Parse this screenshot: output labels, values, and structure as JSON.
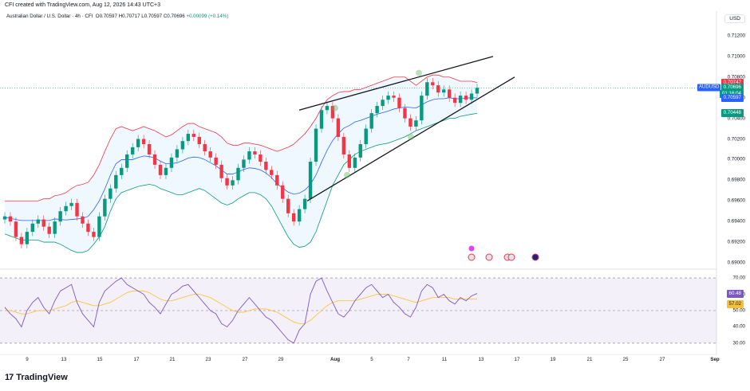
{
  "header": {
    "created_by": "CFI created with TradingView.com, Aug 12, 2026 14:43 UTC+3"
  },
  "legend": {
    "symbol": "Australian Dollar / U.S. Dollar · 4h · CFI",
    "o": "O0.70597",
    "h": "H0.70717",
    "l": "L0.70597",
    "c": "C0.70696",
    "chg": "+0.00099 (+0.14%)"
  },
  "currency": "USD",
  "price_tags": {
    "upper_band": "0.70747",
    "symbol_label": "AUDUSD",
    "last": "0.70696",
    "countdown": "01:16:04",
    "mid_band": "0.70597",
    "lower_band": "0.70448"
  },
  "rsi_tags": {
    "rsi": "60.48",
    "rsi_ma": "57.02"
  },
  "chart_data": {
    "type": "line",
    "instrument": "AUDUSD 4h",
    "y_ticks": [
      "0.71200",
      "0.71000",
      "0.70800",
      "0.70600",
      "0.70400",
      "0.70200",
      "0.70000",
      "0.69800",
      "0.69600",
      "0.69400",
      "0.69200",
      "0.69000"
    ],
    "ylim": [
      0.69,
      0.713
    ],
    "rsi_ticks": [
      "70.00",
      "60.00",
      "50.00",
      "40.00",
      "30.00"
    ],
    "rsi_ylim": [
      28,
      72
    ],
    "x_ticks": [
      "9",
      "13",
      "15",
      "17",
      "21",
      "23",
      "27",
      "29",
      "Aug",
      "5",
      "7",
      "11",
      "13",
      "17",
      "19",
      "21",
      "25",
      "27",
      "Sep"
    ],
    "close": [
      0.6945,
      0.694,
      0.6925,
      0.6918,
      0.693,
      0.6938,
      0.6942,
      0.6935,
      0.6928,
      0.694,
      0.695,
      0.6955,
      0.6958,
      0.6945,
      0.6938,
      0.693,
      0.6925,
      0.6945,
      0.6962,
      0.6972,
      0.6985,
      0.6992,
      0.7005,
      0.7012,
      0.702,
      0.7015,
      0.7005,
      0.6995,
      0.6985,
      0.6992,
      0.7002,
      0.701,
      0.7018,
      0.7025,
      0.7022,
      0.7015,
      0.7008,
      0.7002,
      0.6995,
      0.6982,
      0.6975,
      0.698,
      0.6992,
      0.7,
      0.7008,
      0.7005,
      0.6998,
      0.699,
      0.6985,
      0.6975,
      0.6962,
      0.6948,
      0.694,
      0.6952,
      0.6962,
      0.6998,
      0.703,
      0.7048,
      0.7052,
      0.704,
      0.7022,
      0.7005,
      0.6992,
      0.7002,
      0.7015,
      0.703,
      0.7045,
      0.7052,
      0.7058,
      0.7062,
      0.706,
      0.705,
      0.704,
      0.7032,
      0.7038,
      0.7062,
      0.7075,
      0.7072,
      0.7065,
      0.7068,
      0.706,
      0.7055,
      0.7062,
      0.7058,
      0.7064,
      0.70696
    ],
    "bb_upper": [
      0.696,
      0.696,
      0.696,
      0.696,
      0.696,
      0.696,
      0.696,
      0.6962,
      0.6962,
      0.6965,
      0.6966,
      0.6968,
      0.6972,
      0.6975,
      0.6976,
      0.6978,
      0.6985,
      0.6995,
      0.7008,
      0.702,
      0.703,
      0.7032,
      0.703,
      0.7028,
      0.703,
      0.7032,
      0.703,
      0.7028,
      0.7025,
      0.7022,
      0.7024,
      0.7028,
      0.7032,
      0.7035,
      0.7035,
      0.7032,
      0.703,
      0.7028,
      0.7026,
      0.7022,
      0.7016,
      0.7014,
      0.7014,
      0.7016,
      0.7016,
      0.7015,
      0.7014,
      0.7012,
      0.701,
      0.7008,
      0.701,
      0.7012,
      0.7015,
      0.702,
      0.7025,
      0.7032,
      0.704,
      0.705,
      0.7058,
      0.7062,
      0.7065,
      0.7066,
      0.7066,
      0.7068,
      0.7068,
      0.707,
      0.7072,
      0.7074,
      0.7076,
      0.7078,
      0.708,
      0.708,
      0.708,
      0.7076,
      0.7072,
      0.7076,
      0.708,
      0.7082,
      0.7082,
      0.708,
      0.708,
      0.7078,
      0.7076,
      0.7076,
      0.7076,
      0.70747
    ],
    "bb_lower": [
      0.6928,
      0.6926,
      0.6924,
      0.6922,
      0.6922,
      0.6922,
      0.6922,
      0.692,
      0.692,
      0.692,
      0.6918,
      0.6915,
      0.6912,
      0.691,
      0.691,
      0.6912,
      0.6918,
      0.6925,
      0.6935,
      0.695,
      0.6962,
      0.6968,
      0.697,
      0.6972,
      0.6974,
      0.6975,
      0.6976,
      0.6975,
      0.6972,
      0.697,
      0.6968,
      0.6966,
      0.6966,
      0.6968,
      0.697,
      0.6972,
      0.697,
      0.6966,
      0.6962,
      0.6958,
      0.6956,
      0.6958,
      0.6962,
      0.6965,
      0.6968,
      0.6968,
      0.6966,
      0.6962,
      0.6955,
      0.6945,
      0.6935,
      0.6925,
      0.6918,
      0.6915,
      0.6916,
      0.692,
      0.693,
      0.6945,
      0.696,
      0.6975,
      0.6985,
      0.6995,
      0.7,
      0.7005,
      0.7008,
      0.701,
      0.7012,
      0.7014,
      0.7015,
      0.7016,
      0.7018,
      0.702,
      0.7022,
      0.7025,
      0.7028,
      0.703,
      0.7032,
      0.7034,
      0.7036,
      0.7038,
      0.704,
      0.704,
      0.7042,
      0.7043,
      0.7044,
      0.70448
    ],
    "rsi": [
      52,
      48,
      45,
      40,
      50,
      55,
      58,
      52,
      48,
      56,
      62,
      64,
      66,
      55,
      48,
      44,
      40,
      55,
      62,
      65,
      68,
      70,
      66,
      64,
      62,
      60,
      55,
      52,
      48,
      54,
      60,
      62,
      65,
      66,
      62,
      58,
      54,
      50,
      48,
      42,
      40,
      44,
      50,
      54,
      58,
      54,
      50,
      46,
      44,
      40,
      36,
      32,
      30,
      38,
      42,
      60,
      68,
      70,
      62,
      55,
      48,
      46,
      50,
      56,
      60,
      64,
      66,
      62,
      58,
      60,
      55,
      52,
      48,
      46,
      52,
      62,
      66,
      64,
      58,
      60,
      56,
      54,
      58,
      56,
      59,
      60.48
    ],
    "rsi_ma": [
      50,
      50,
      49,
      48,
      48,
      49,
      50,
      50,
      50,
      51,
      52,
      53,
      55,
      56,
      55,
      54,
      53,
      53,
      54,
      55,
      57,
      59,
      61,
      62,
      62,
      62,
      61,
      59,
      57,
      56,
      56,
      57,
      58,
      59,
      60,
      60,
      59,
      58,
      56,
      54,
      52,
      50,
      49,
      49,
      50,
      51,
      51,
      51,
      50,
      49,
      47,
      45,
      43,
      42,
      42,
      44,
      47,
      50,
      53,
      55,
      56,
      56,
      56,
      56,
      57,
      58,
      59,
      60,
      60,
      60,
      59,
      58,
      57,
      56,
      55,
      56,
      57,
      58,
      58,
      58,
      58,
      57,
      57,
      57,
      57,
      57.02
    ]
  }
}
